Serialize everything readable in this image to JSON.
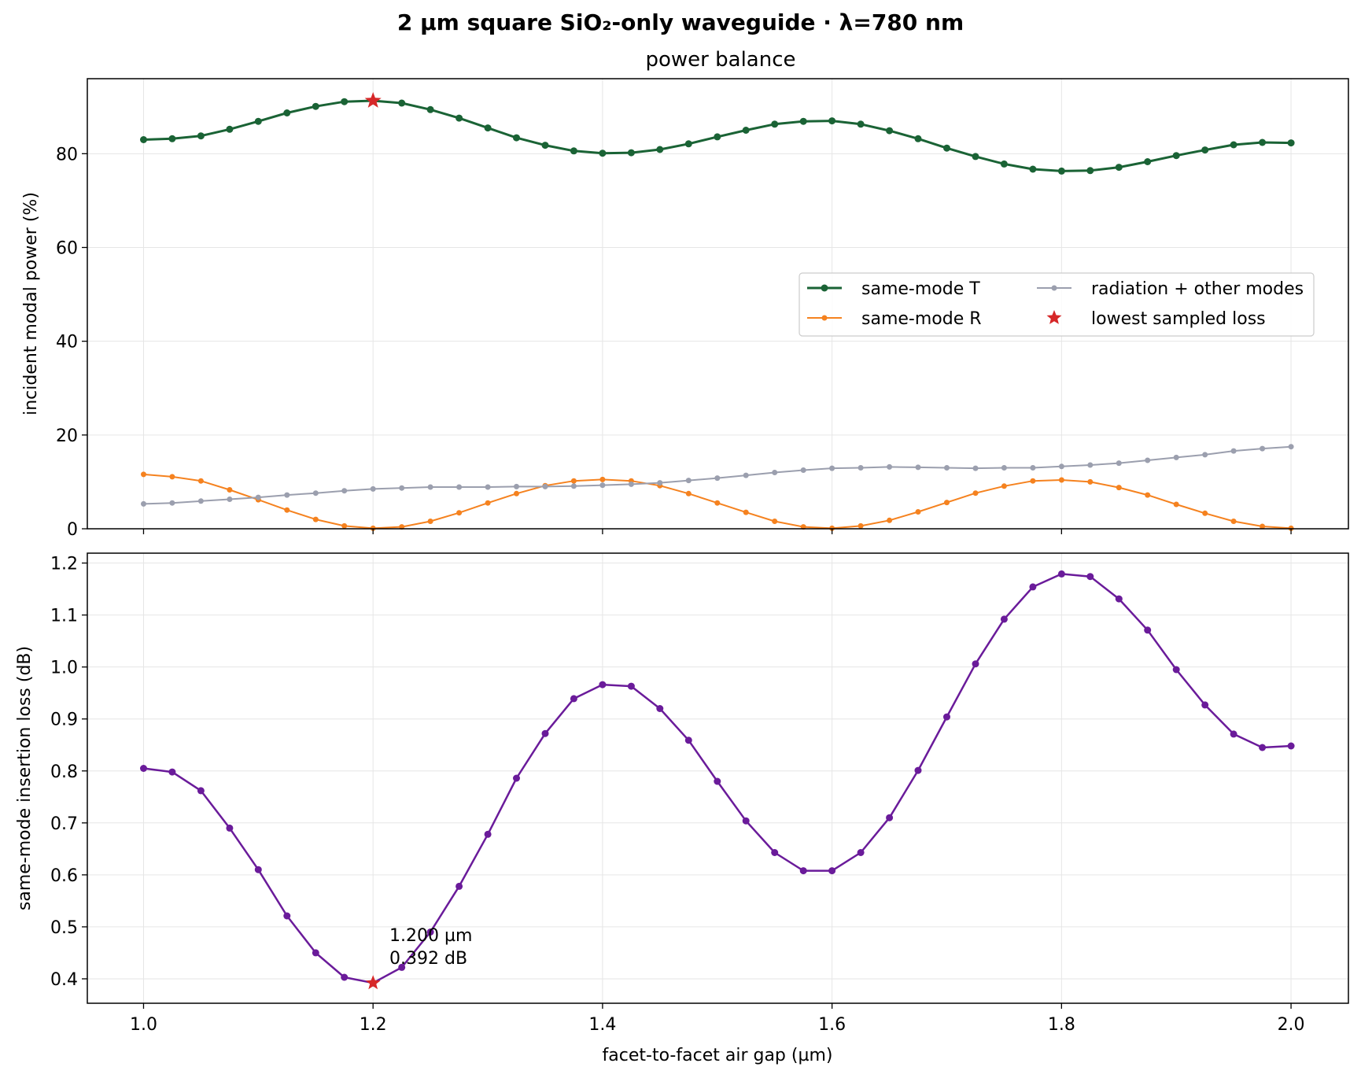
{
  "chart_data": {
    "suptitle": "2 µm square SiO₂-only waveguide · λ=780 nm",
    "xlabel": "facet-to-facet air gap (µm)",
    "x": [
      1.0,
      1.025,
      1.05,
      1.075,
      1.1,
      1.125,
      1.15,
      1.175,
      1.2,
      1.225,
      1.25,
      1.275,
      1.3,
      1.325,
      1.35,
      1.375,
      1.4,
      1.425,
      1.45,
      1.475,
      1.5,
      1.525,
      1.55,
      1.575,
      1.6,
      1.625,
      1.65,
      1.675,
      1.7,
      1.725,
      1.75,
      1.775,
      1.8,
      1.825,
      1.85,
      1.875,
      1.9,
      1.925,
      1.95,
      1.975,
      2.0
    ],
    "xlim": [
      0.951,
      2.05
    ],
    "xticks": [
      "1.0",
      "1.2",
      "1.4",
      "1.6",
      "1.8",
      "2.0"
    ],
    "colors": {
      "transmission": "#1a6335",
      "reflection": "#f5821f",
      "radiation": "#9b9fae",
      "loss": "#6a1b9a",
      "star": "#d62728",
      "grid": "#e6e6e6"
    },
    "panels": [
      {
        "type": "line",
        "title": "power balance",
        "ylabel": "incident modal power (%)",
        "ylim": [
          0,
          96
        ],
        "yticks": [
          "0",
          "20",
          "40",
          "60",
          "80"
        ],
        "grid": true,
        "legend_position": "center-right",
        "series": [
          {
            "name": "same-mode T",
            "color_key": "transmission",
            "values": [
              83.0,
              83.2,
              83.8,
              85.2,
              86.9,
              88.7,
              90.1,
              91.1,
              91.3,
              90.8,
              89.4,
              87.6,
              85.5,
              83.4,
              81.8,
              80.6,
              80.1,
              80.2,
              80.9,
              82.1,
              83.6,
              85.0,
              86.3,
              86.9,
              87.0,
              86.3,
              84.9,
              83.2,
              81.2,
              79.4,
              77.8,
              76.7,
              76.3,
              76.4,
              77.1,
              78.3,
              79.6,
              80.8,
              81.9,
              82.4,
              82.3
            ]
          },
          {
            "name": "same-mode R",
            "color_key": "reflection",
            "values": [
              11.6,
              11.1,
              10.2,
              8.3,
              6.2,
              4.0,
              2.0,
              0.6,
              0.1,
              0.4,
              1.6,
              3.4,
              5.5,
              7.5,
              9.2,
              10.2,
              10.5,
              10.2,
              9.2,
              7.5,
              5.5,
              3.5,
              1.6,
              0.4,
              0.1,
              0.6,
              1.8,
              3.6,
              5.6,
              7.6,
              9.1,
              10.2,
              10.4,
              10.0,
              8.8,
              7.2,
              5.2,
              3.3,
              1.6,
              0.5,
              0.1
            ]
          },
          {
            "name": "radiation + other modes",
            "color_key": "radiation",
            "values": [
              5.3,
              5.5,
              5.9,
              6.3,
              6.7,
              7.2,
              7.6,
              8.1,
              8.5,
              8.7,
              8.9,
              8.9,
              8.9,
              9.0,
              9.0,
              9.1,
              9.3,
              9.5,
              9.8,
              10.3,
              10.8,
              11.4,
              12.0,
              12.5,
              12.9,
              13.0,
              13.2,
              13.1,
              13.0,
              12.9,
              13.0,
              13.0,
              13.3,
              13.6,
              14.0,
              14.6,
              15.2,
              15.8,
              16.6,
              17.1,
              17.5
            ]
          }
        ],
        "marker": {
          "name": "lowest sampled loss",
          "x": 1.2,
          "y": 91.3,
          "color_key": "star"
        }
      },
      {
        "type": "line",
        "ylabel": "same-mode insertion loss (dB)",
        "ylim": [
          0.353,
          1.219
        ],
        "yticks": [
          "0.4",
          "0.5",
          "0.6",
          "0.7",
          "0.8",
          "0.9",
          "1.0",
          "1.1",
          "1.2"
        ],
        "grid": true,
        "series": [
          {
            "color_key": "loss",
            "values": [
              0.805,
              0.798,
              0.762,
              0.69,
              0.61,
              0.521,
              0.45,
              0.403,
              0.392,
              0.422,
              0.49,
              0.578,
              0.678,
              0.786,
              0.872,
              0.939,
              0.966,
              0.963,
              0.92,
              0.859,
              0.78,
              0.704,
              0.643,
              0.608,
              0.608,
              0.643,
              0.71,
              0.801,
              0.904,
              1.006,
              1.092,
              1.154,
              1.179,
              1.174,
              1.131,
              1.071,
              0.995,
              0.927,
              0.871,
              0.845,
              0.848
            ]
          }
        ],
        "marker": {
          "x": 1.2,
          "y": 0.392,
          "color_key": "star"
        },
        "annotation": [
          "1.200 µm",
          "0.392 dB"
        ]
      }
    ]
  }
}
